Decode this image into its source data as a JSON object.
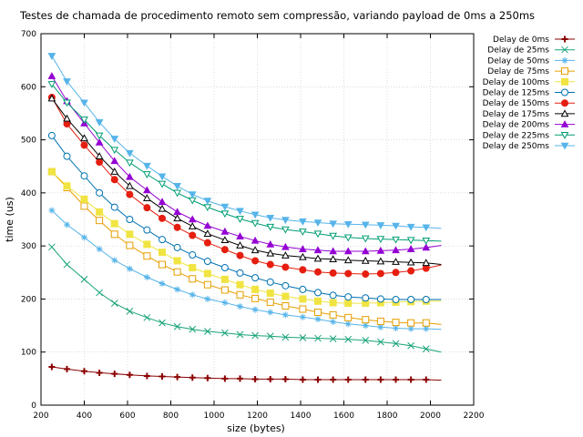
{
  "chart_data": {
    "type": "line",
    "title": "Testes de chamada de procedimento remoto sem compressão, variando payload de 0ms a 250ms",
    "xlabel": "size (bytes)",
    "ylabel": "time (us)",
    "xlim": [
      200,
      2200
    ],
    "ylim": [
      0,
      700
    ],
    "xticks": [
      200,
      400,
      600,
      800,
      1000,
      1200,
      1400,
      1600,
      1800,
      2000,
      2200
    ],
    "yticks": [
      0,
      100,
      200,
      300,
      400,
      500,
      600,
      700
    ],
    "grid": true,
    "legend_position": "top-right",
    "x": [
      250,
      320,
      400,
      470,
      540,
      610,
      690,
      760,
      830,
      900,
      970,
      1050,
      1120,
      1190,
      1260,
      1330,
      1410,
      1480,
      1550,
      1620,
      1700,
      1770,
      1840,
      1910,
      1980
    ],
    "line_end_x": 2050,
    "series": [
      {
        "name": "Delay de 0ms",
        "color": "#8b0000",
        "marker": "plus",
        "values": [
          72,
          68,
          64,
          61,
          59,
          57,
          55,
          54,
          53,
          52,
          51,
          50,
          50,
          49,
          49,
          49,
          48,
          48,
          48,
          48,
          48,
          48,
          48,
          48,
          48
        ],
        "end_value": 47
      },
      {
        "name": "Delay de 25ms",
        "color": "#1aa37a",
        "marker": "x",
        "values": [
          298,
          265,
          237,
          212,
          192,
          177,
          165,
          155,
          148,
          143,
          139,
          136,
          133,
          131,
          130,
          128,
          127,
          126,
          125,
          124,
          122,
          119,
          116,
          112,
          106
        ],
        "end_value": 100
      },
      {
        "name": "Delay de 50ms",
        "color": "#56b4e9",
        "marker": "star",
        "values": [
          367,
          340,
          316,
          294,
          273,
          257,
          241,
          229,
          218,
          208,
          200,
          193,
          186,
          180,
          175,
          170,
          166,
          162,
          157,
          153,
          150,
          147,
          145,
          144,
          144
        ],
        "end_value": 143
      },
      {
        "name": "Delay de 75ms",
        "color": "#e69f00",
        "marker": "square-open",
        "values": [
          440,
          410,
          375,
          348,
          322,
          301,
          281,
          265,
          251,
          238,
          227,
          217,
          208,
          201,
          194,
          187,
          181,
          175,
          170,
          165,
          161,
          158,
          156,
          155,
          155
        ],
        "end_value": 152
      },
      {
        "name": "Delay de 100ms",
        "color": "#f0e442",
        "marker": "square-filled",
        "values": [
          440,
          413,
          388,
          364,
          342,
          322,
          303,
          288,
          272,
          259,
          248,
          237,
          227,
          218,
          211,
          205,
          200,
          196,
          193,
          192,
          192,
          193,
          194,
          195,
          196
        ],
        "end_value": 196
      },
      {
        "name": "Delay de 125ms",
        "color": "#0072b2",
        "marker": "circle-open",
        "values": [
          508,
          469,
          432,
          400,
          373,
          350,
          330,
          312,
          297,
          283,
          271,
          259,
          249,
          240,
          232,
          225,
          218,
          212,
          207,
          204,
          202,
          200,
          199,
          199,
          199
        ],
        "end_value": 199
      },
      {
        "name": "Delay de 150ms",
        "color": "#e51e10",
        "marker": "circle-filled",
        "values": [
          580,
          530,
          490,
          458,
          425,
          397,
          372,
          352,
          335,
          320,
          306,
          293,
          282,
          272,
          265,
          260,
          255,
          251,
          249,
          248,
          247,
          248,
          250,
          253,
          258
        ],
        "end_value": 264
      },
      {
        "name": "Delay de 175ms",
        "color": "#000000",
        "marker": "triangle-open",
        "values": [
          578,
          540,
          503,
          469,
          440,
          413,
          390,
          370,
          352,
          337,
          323,
          311,
          301,
          292,
          286,
          282,
          279,
          276,
          275,
          273,
          272,
          271,
          270,
          269,
          268
        ],
        "end_value": 265
      },
      {
        "name": "Delay de 200ms",
        "color": "#9400d3",
        "marker": "triangle-filled",
        "values": [
          620,
          573,
          531,
          495,
          460,
          430,
          405,
          383,
          364,
          350,
          338,
          327,
          318,
          310,
          303,
          298,
          294,
          292,
          290,
          290,
          290,
          291,
          292,
          294,
          297
        ],
        "end_value": 301
      },
      {
        "name": "Delay de 225ms",
        "color": "#009e73",
        "marker": "triangle-down-open",
        "values": [
          605,
          570,
          538,
          508,
          481,
          457,
          435,
          417,
          400,
          386,
          373,
          361,
          351,
          343,
          336,
          331,
          327,
          323,
          319,
          316,
          314,
          313,
          312,
          311,
          310
        ],
        "end_value": 309
      },
      {
        "name": "Delay de 250ms",
        "color": "#56b4e9",
        "marker": "triangle-down-filled",
        "values": [
          658,
          610,
          570,
          533,
          502,
          475,
          451,
          431,
          413,
          397,
          385,
          374,
          366,
          359,
          353,
          349,
          346,
          344,
          342,
          341,
          340,
          339,
          338,
          336,
          335
        ],
        "end_value": 333
      }
    ]
  }
}
